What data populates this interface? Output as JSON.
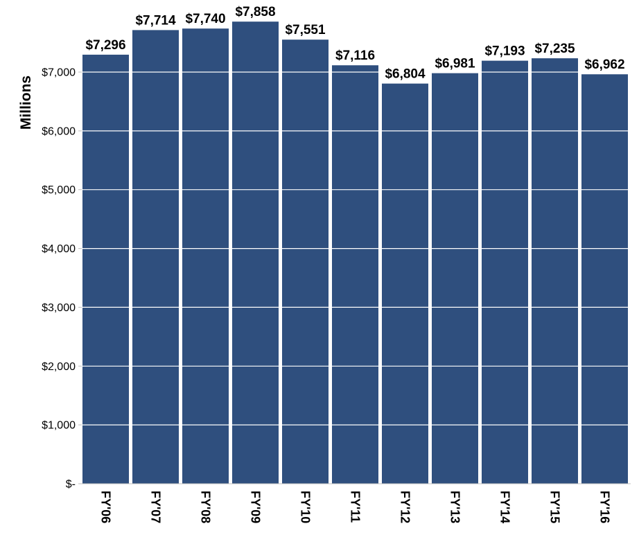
{
  "chart_data": {
    "type": "bar",
    "title": "",
    "xlabel": "",
    "ylabel": "Millions",
    "categories": [
      "FY'06",
      "FY'07",
      "FY'08",
      "FY'09",
      "FY'10",
      "FY'11",
      "FY'12",
      "FY'13",
      "FY'14",
      "FY'15",
      "FY'16"
    ],
    "values": [
      7296,
      7714,
      7740,
      7858,
      7551,
      7116,
      6804,
      6981,
      7193,
      7235,
      6962
    ],
    "data_labels": [
      "$7,296",
      "$7,714",
      "$7,740",
      "$7,858",
      "$7,551",
      "$7,116",
      "$6,804",
      "$6,981",
      "$7,193",
      "$7,235",
      "$6,962"
    ],
    "yticks": [
      0,
      1000,
      2000,
      3000,
      4000,
      5000,
      6000,
      7000
    ],
    "ytick_labels": [
      "$-",
      "$1,000",
      "$2,000",
      "$3,000",
      "$4,000",
      "$5,000",
      "$6,000",
      "$7,000"
    ],
    "ylim": [
      0,
      7300
    ],
    "grid": true,
    "legend": "none",
    "colors": {
      "bar": "#2f4f7e",
      "gridline": "#ffffff",
      "axis": "#bfbfbf",
      "text": "#000000"
    }
  }
}
